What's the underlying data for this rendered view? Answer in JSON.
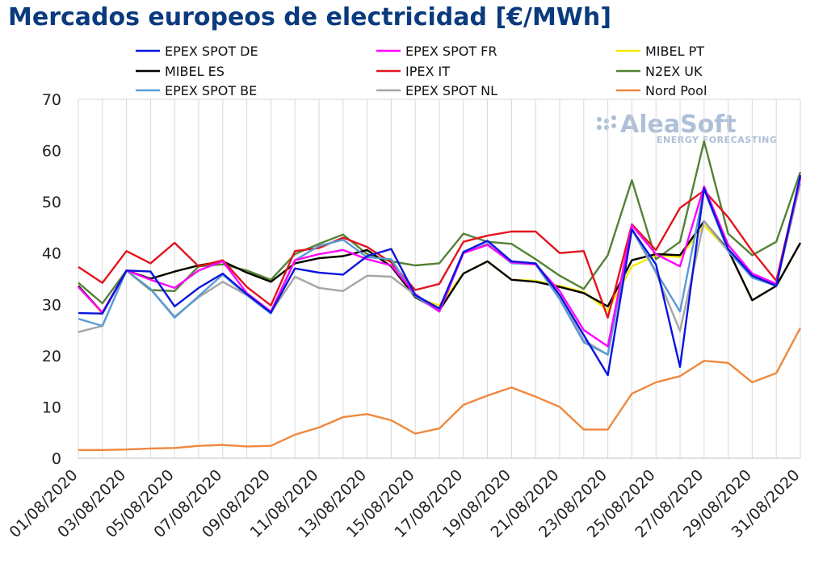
{
  "chart_data": {
    "type": "line",
    "title": "Mercados europeos de electricidad [€/MWh]",
    "ylim": [
      0,
      70
    ],
    "yticks": [
      0,
      10,
      20,
      30,
      40,
      50,
      60,
      70
    ],
    "grid": "vertical",
    "legend_position": "top",
    "x": [
      "01/08/2020",
      "02/08/2020",
      "03/08/2020",
      "04/08/2020",
      "05/08/2020",
      "06/08/2020",
      "07/08/2020",
      "08/08/2020",
      "09/08/2020",
      "10/08/2020",
      "11/08/2020",
      "12/08/2020",
      "13/08/2020",
      "14/08/2020",
      "15/08/2020",
      "16/08/2020",
      "17/08/2020",
      "18/08/2020",
      "19/08/2020",
      "20/08/2020",
      "21/08/2020",
      "22/08/2020",
      "23/08/2020",
      "24/08/2020",
      "25/08/2020",
      "26/08/2020",
      "27/08/2020",
      "28/08/2020",
      "29/08/2020",
      "30/08/2020",
      "31/08/2020"
    ],
    "xtick_labels": [
      "01/08/2020",
      "03/08/2020",
      "05/08/2020",
      "07/08/2020",
      "09/08/2020",
      "11/08/2020",
      "13/08/2020",
      "15/08/2020",
      "17/08/2020",
      "19/08/2020",
      "21/08/2020",
      "23/08/2020",
      "25/08/2020",
      "27/08/2020",
      "29/08/2020",
      "31/08/2020"
    ],
    "series": [
      {
        "name": "N2EX UK",
        "color": "#548235",
        "values": [
          34.2,
          30.2,
          36.6,
          32.8,
          32.6,
          37.4,
          37.8,
          36.6,
          34.8,
          39.8,
          41.8,
          43.6,
          39.8,
          38.4,
          37.6,
          38.0,
          43.8,
          42.2,
          41.8,
          38.8,
          35.6,
          33.0,
          39.6,
          54.2,
          38.8,
          42.2,
          61.8,
          43.8,
          39.6,
          42.2,
          55.8
        ]
      },
      {
        "name": "MIBEL PT",
        "color": "#f5ec00",
        "values": [
          33.6,
          28.2,
          36.6,
          35.0,
          36.4,
          37.6,
          38.4,
          36.2,
          34.4,
          38.0,
          39.0,
          39.4,
          40.6,
          37.4,
          31.4,
          29.8,
          36.0,
          38.4,
          34.8,
          34.6,
          33.6,
          32.4,
          28.8,
          37.4,
          39.6,
          39.2,
          45.4,
          40.6,
          30.8,
          33.6,
          42.0
        ]
      },
      {
        "name": "MIBEL ES",
        "color": "#000000",
        "values": [
          33.6,
          28.4,
          36.6,
          35.0,
          36.4,
          37.6,
          38.4,
          36.2,
          34.4,
          38.0,
          39.0,
          39.4,
          40.6,
          37.4,
          31.4,
          28.8,
          36.0,
          38.4,
          34.8,
          34.4,
          33.4,
          32.2,
          29.6,
          38.6,
          39.8,
          39.6,
          46.2,
          40.6,
          30.8,
          33.6,
          42.0
        ]
      },
      {
        "name": "IPEX IT",
        "color": "#e3141e",
        "values": [
          37.3,
          34.2,
          40.4,
          38.0,
          42.0,
          37.4,
          38.6,
          33.4,
          29.8,
          40.4,
          41.0,
          43.0,
          41.2,
          38.2,
          32.8,
          34.0,
          42.2,
          43.4,
          44.2,
          44.2,
          40.0,
          40.4,
          27.4,
          45.6,
          40.6,
          48.8,
          52.2,
          47.0,
          40.4,
          34.6,
          54.8
        ]
      },
      {
        "name": "Nord Pool",
        "color": "#f0883e",
        "values": [
          1.6,
          1.6,
          1.7,
          1.9,
          2.0,
          2.4,
          2.6,
          2.3,
          2.4,
          4.6,
          6.0,
          8.0,
          8.6,
          7.4,
          4.8,
          5.8,
          10.4,
          12.2,
          13.8,
          12.0,
          10.0,
          5.6,
          5.6,
          12.6,
          14.8,
          16.0,
          19.0,
          18.6,
          14.8,
          16.6,
          25.4
        ]
      },
      {
        "name": "EPEX SPOT NL",
        "color": "#a5a5a5",
        "values": [
          24.6,
          25.8,
          36.6,
          33.0,
          27.6,
          31.4,
          34.4,
          31.8,
          28.4,
          35.4,
          33.2,
          32.6,
          35.6,
          35.4,
          31.8,
          28.8,
          40.0,
          41.6,
          38.4,
          37.8,
          31.6,
          23.0,
          20.2,
          44.6,
          36.2,
          24.8,
          46.2,
          40.4,
          35.4,
          33.8,
          53.6
        ]
      },
      {
        "name": "EPEX SPOT BE",
        "color": "#5b9bd5",
        "values": [
          27.2,
          25.8,
          36.6,
          33.0,
          27.4,
          31.6,
          35.8,
          31.8,
          28.2,
          38.6,
          41.4,
          42.6,
          39.2,
          38.8,
          31.6,
          28.6,
          40.0,
          41.8,
          38.0,
          37.8,
          31.0,
          22.6,
          20.2,
          44.8,
          36.4,
          28.6,
          52.4,
          40.4,
          35.2,
          33.6,
          54.8
        ]
      },
      {
        "name": "EPEX SPOT FR",
        "color": "#ff00ff",
        "values": [
          33.4,
          28.4,
          36.6,
          34.8,
          33.2,
          36.6,
          38.4,
          32.2,
          28.6,
          38.6,
          39.8,
          40.6,
          38.8,
          37.6,
          32.0,
          28.6,
          40.0,
          41.6,
          38.2,
          37.8,
          32.6,
          25.0,
          21.8,
          45.4,
          39.8,
          37.4,
          53.0,
          41.6,
          36.0,
          34.0,
          54.6
        ]
      },
      {
        "name": "EPEX SPOT DE",
        "color": "#0a14dc",
        "values": [
          28.3,
          28.2,
          36.6,
          36.4,
          29.6,
          33.2,
          36.0,
          32.0,
          28.4,
          37.0,
          36.2,
          35.8,
          39.4,
          40.8,
          31.8,
          29.2,
          40.2,
          42.4,
          38.4,
          38.0,
          31.8,
          24.0,
          16.2,
          44.6,
          37.8,
          17.8,
          52.6,
          40.8,
          35.6,
          33.6,
          55.2
        ]
      }
    ],
    "legend": [
      {
        "name": "EPEX SPOT DE",
        "color": "#0a14dc"
      },
      {
        "name": "EPEX SPOT FR",
        "color": "#ff00ff"
      },
      {
        "name": "MIBEL PT",
        "color": "#f5ec00"
      },
      {
        "name": "MIBEL ES",
        "color": "#000000"
      },
      {
        "name": "IPEX IT",
        "color": "#e3141e"
      },
      {
        "name": "N2EX UK",
        "color": "#548235"
      },
      {
        "name": "EPEX SPOT BE",
        "color": "#5b9bd5"
      },
      {
        "name": "EPEX SPOT NL",
        "color": "#a5a5a5"
      },
      {
        "name": "Nord Pool",
        "color": "#f0883e"
      }
    ]
  },
  "watermark": {
    "brand": "AleaSoft",
    "tagline": "ENERGY FORECASTING"
  }
}
